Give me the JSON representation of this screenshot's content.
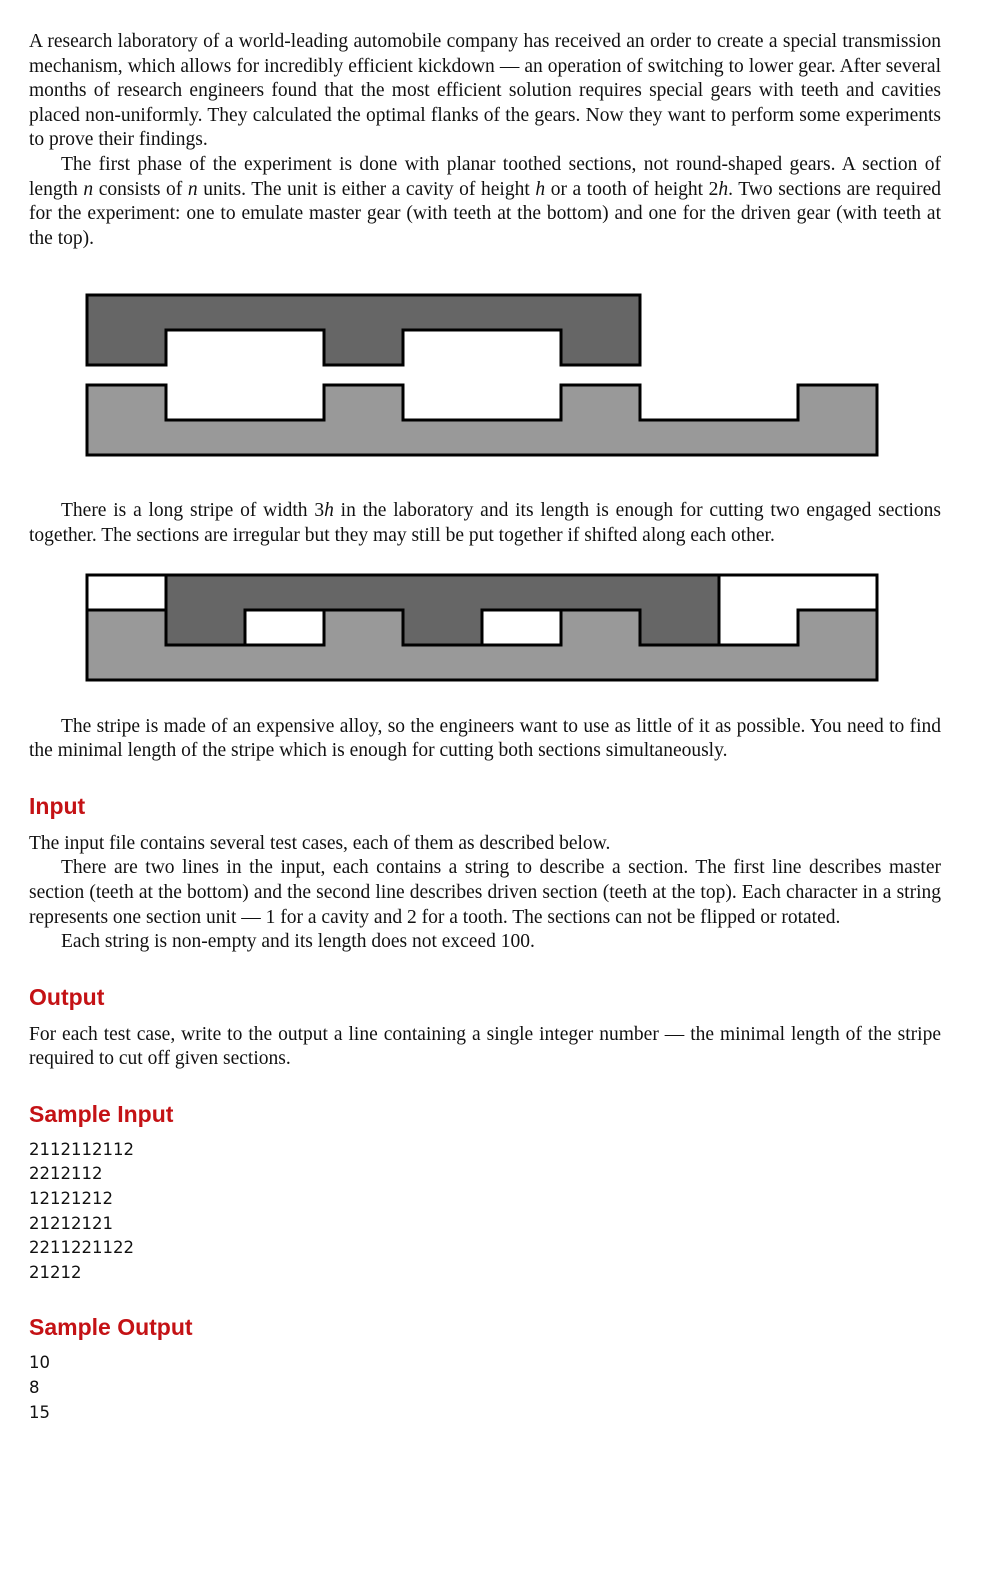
{
  "statement": {
    "p1": "A research laboratory of a world-leading automobile company has received an order to create a special transmission mechanism, which allows for incredibly efficient kickdown — an operation of switching to lower gear. After several months of research engineers found that the most efficient solution requires special gears with teeth and cavities placed non-uniformly. They calculated the optimal flanks of the gears. Now they want to perform some experiments to prove their findings.",
    "p2_a": "The first phase of the experiment is done with planar toothed sections, not round-shaped gears. A section of length ",
    "p2_b": " consists of ",
    "p2_c": " units. The unit is either a cavity of height ",
    "p2_d": " or a tooth of height 2",
    "p2_e": ". Two sections are required for the experiment: one to emulate master gear (with teeth at the bottom) and one for the driven gear (with teeth at the top).",
    "var_n": "n",
    "var_h": "h",
    "p3_a": "There is a long stripe of width 3",
    "p3_b": " in the laboratory and its length is enough for cutting two engaged sections together. The sections are irregular but they may still be put together if shifted along each other.",
    "p4": "The stripe is made of an expensive alloy, so the engineers want to use as little of it as possible. You need to find the minimal length of the stripe which is enough for cutting both sections simultaneously."
  },
  "input_section": {
    "heading": "Input",
    "p1": "The input file contains several test cases, each of them as described below.",
    "p2": "There are two lines in the input, each contains a string to describe a section. The first line describes master section (teeth at the bottom) and the second line describes driven section (teeth at the top). Each character in a string represents one section unit — 1 for a cavity and 2 for a tooth. The sections can not be flipped or rotated.",
    "p3": "Each string is non-empty and its length does not exceed 100."
  },
  "output_section": {
    "heading": "Output",
    "p1": "For each test case, write to the output a line containing a single integer number — the minimal length of the stripe required to cut off given sections."
  },
  "sample_input": {
    "heading": "Sample Input",
    "lines": [
      "2112112112",
      "2212112",
      "12121212",
      "21212121",
      "2211221122",
      "21212"
    ]
  },
  "sample_output": {
    "heading": "Sample Output",
    "lines": [
      "10",
      "8",
      "15"
    ]
  },
  "figures": {
    "colors": {
      "master": "#666666",
      "driven": "#999999",
      "stripe_bg": "#ffffff",
      "outline": "#000000"
    },
    "figure1": {
      "master": "2112112",
      "driven": "2112112112",
      "master_offset_units": 0
    },
    "figure2": {
      "master": "2112112",
      "driven": "2112112112",
      "master_offset_units": 1,
      "stripe_units": 10
    }
  }
}
